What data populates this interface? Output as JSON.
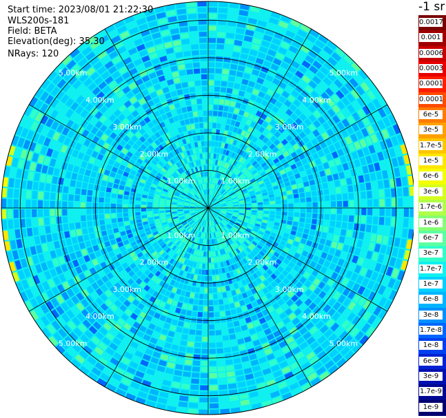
{
  "header": {
    "start_time": "Start time: 2023/08/01 21:22:30",
    "instrument": "WLS200s-181",
    "field": "Field: BETA",
    "elevation": "Elevation(deg): 35.30",
    "nrays": "NRays: 120"
  },
  "colorbar": {
    "unit_label": "-1 sr",
    "ticks": [
      "0.0017",
      "0.001",
      "0.0006",
      "0.0003",
      "0.00017",
      "0.0001",
      "6e-5",
      "3e-5",
      "1.7e-5",
      "1e-5",
      "6e-6",
      "3e-6",
      "1.7e-6",
      "1e-6",
      "6e-7",
      "3e-7",
      "1.7e-7",
      "1e-7",
      "6e-8",
      "3e-8",
      "1.7e-8",
      "1e-8",
      "6e-9",
      "3e-9",
      "1.7e-9",
      "1e-9"
    ],
    "band_colors": [
      "#7a0000",
      "#a00000",
      "#c80000",
      "#e60000",
      "#ff1e00",
      "#ff4a00",
      "#ff7a00",
      "#ffa000",
      "#ffc600",
      "#ffe600",
      "#f4ff00",
      "#d6ff1e",
      "#b0ff48",
      "#84ff74",
      "#5cffa0",
      "#30ffca",
      "#10f0f0",
      "#00d0ff",
      "#00b4ff",
      "#0090ff",
      "#0066ff",
      "#0040f0",
      "#0022d0",
      "#0010b0",
      "#000890",
      "#000070"
    ]
  },
  "chart_data": {
    "type": "heatmap",
    "projection": "polar PPI",
    "field": "BETA",
    "n_rays": 120,
    "max_range_km": 5.5,
    "range_rings_km": [
      1,
      2,
      3,
      4,
      5
    ],
    "range_ring_labels": [
      "1.00km",
      "2.00km",
      "3.00km",
      "4.00km",
      "5.00km"
    ],
    "spoke_angles_deg": [
      0,
      30,
      60,
      90,
      120,
      150,
      180,
      210,
      240,
      270,
      300,
      330
    ],
    "dominant_value_range_sr-1": [
      "1e-7",
      "1e-6"
    ],
    "edge_values_sr-1": "1.7e-6 to 1e-5 at far range (west and east limbs)"
  }
}
